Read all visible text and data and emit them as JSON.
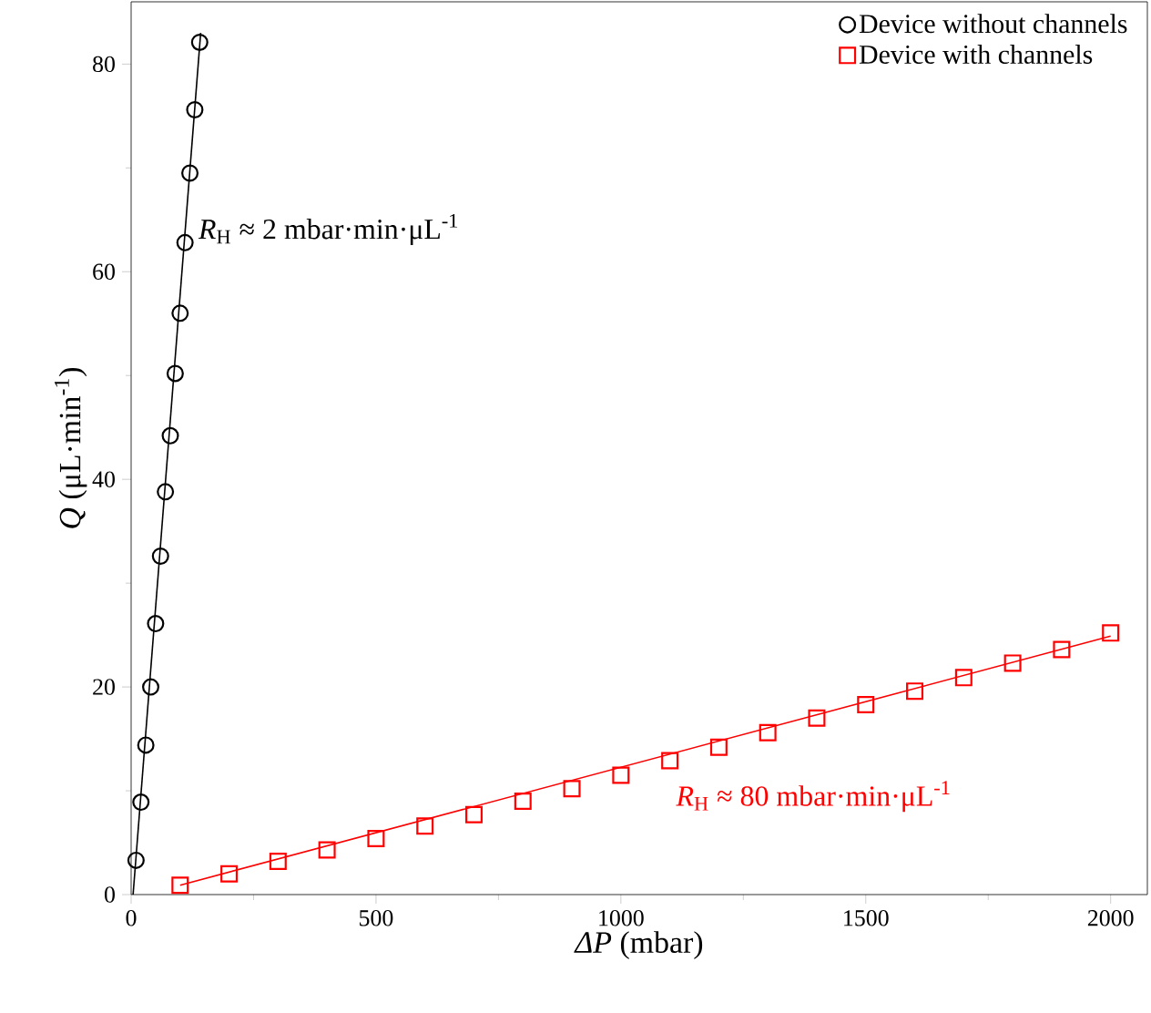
{
  "chart_data": {
    "type": "scatter",
    "xlabel": "*ΔP* (mbar)",
    "ylabel": "*Q* (μL·min$^{-1}$)",
    "xlim": [
      0,
      2075
    ],
    "ylim": [
      0,
      86
    ],
    "xticks": [
      0,
      500,
      1000,
      1500,
      2000
    ],
    "yticks": [
      0,
      20,
      40,
      60,
      80
    ],
    "legend": "top right",
    "grid": false,
    "series": [
      {
        "name": "Device without channels",
        "marker": "circle",
        "color": "#000000",
        "x": [
          10,
          20,
          30,
          40,
          50,
          60,
          70,
          80,
          90,
          100,
          110,
          120,
          130,
          140
        ],
        "values": [
          3.3,
          8.9,
          14.4,
          20.0,
          26.1,
          32.6,
          38.8,
          44.2,
          50.2,
          56.0,
          62.8,
          69.5,
          75.6,
          82.1
        ]
      },
      {
        "name": "Device with channels",
        "marker": "square",
        "color": "#ff0000",
        "x": [
          100,
          200,
          300,
          400,
          500,
          600,
          700,
          800,
          900,
          1000,
          1100,
          1200,
          1300,
          1400,
          1500,
          1600,
          1700,
          1800,
          1900,
          2000
        ],
        "values": [
          0.9,
          2.0,
          3.2,
          4.3,
          5.4,
          6.6,
          7.7,
          9.0,
          10.2,
          11.5,
          12.9,
          14.2,
          15.6,
          17.0,
          18.3,
          19.6,
          20.9,
          22.3,
          23.6,
          25.2
        ]
      },
      {
        "type": "line",
        "marker": "none",
        "color": "#000000",
        "x": [
          4,
          142
        ],
        "values": [
          0,
          83
        ]
      },
      {
        "type": "line",
        "marker": "none",
        "color": "#ff0000",
        "x": [
          100,
          2000
        ],
        "values": [
          0.9,
          24.9
        ]
      }
    ],
    "annotations": [
      "*R*$_{H}$ ≈ 2 mbar·min·μL$^{-1}$",
      "*R*$_{H}$ ≈ 80 mbar·min·μL$^{-1}$"
    ]
  }
}
